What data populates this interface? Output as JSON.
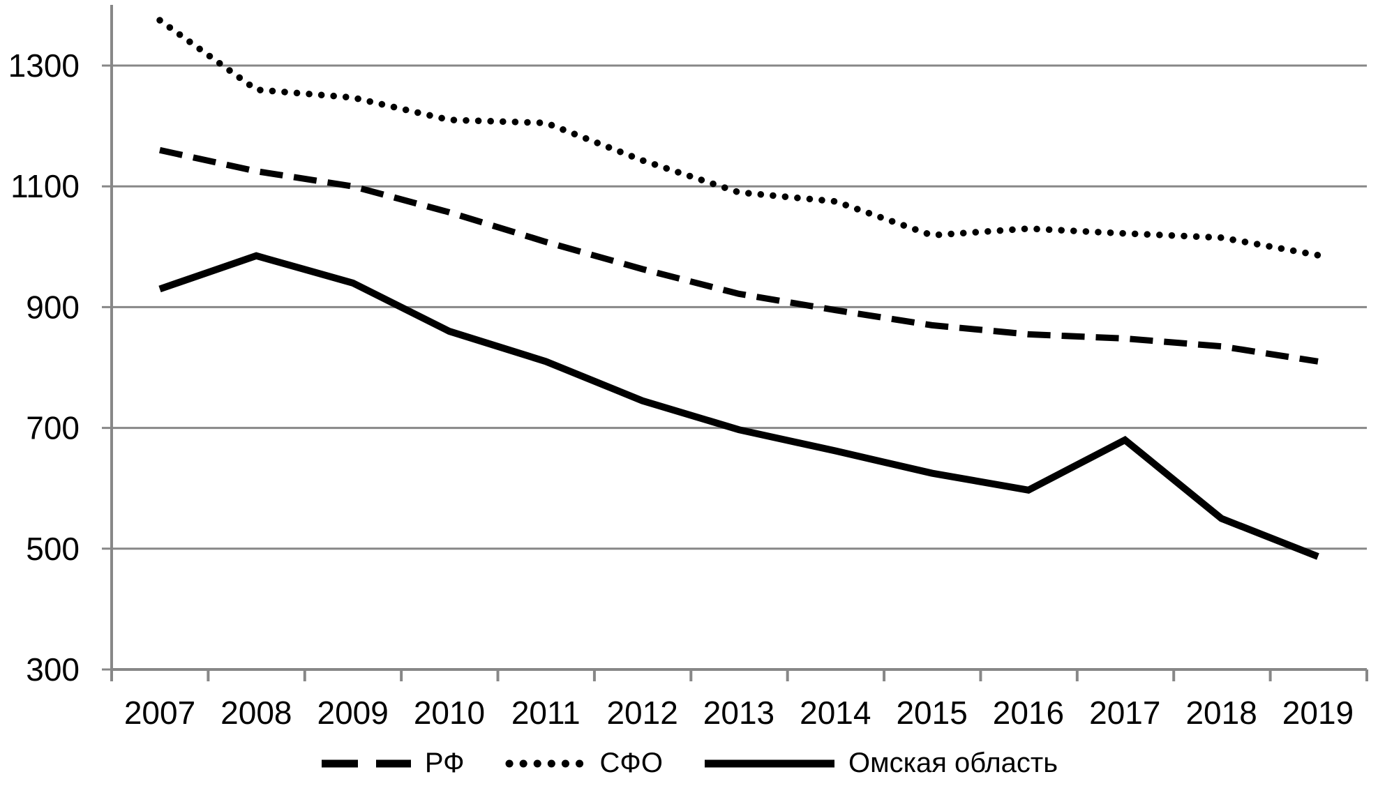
{
  "chart_data": {
    "type": "line",
    "title": "",
    "xlabel": "",
    "ylabel": "",
    "x": [
      "2007",
      "2008",
      "2009",
      "2010",
      "2011",
      "2012",
      "2013",
      "2014",
      "2015",
      "2016",
      "2017",
      "2018",
      "2019"
    ],
    "series": [
      {
        "id": "rf",
        "name": "РФ",
        "style": "dashed",
        "color": "#000000",
        "values": [
          1160,
          1125,
          1100,
          1057,
          1008,
          963,
          922,
          895,
          870,
          855,
          848,
          835,
          810
        ]
      },
      {
        "id": "sfo",
        "name": "СФО",
        "style": "dotted",
        "color": "#000000",
        "values": [
          1375,
          1260,
          1247,
          1210,
          1205,
          1143,
          1090,
          1075,
          1019,
          1030,
          1022,
          1015,
          986
        ]
      },
      {
        "id": "omsk",
        "name": "Омская область",
        "style": "solid",
        "color": "#000000",
        "values": [
          930,
          985,
          940,
          860,
          810,
          745,
          697,
          662,
          625,
          597,
          680,
          550,
          487
        ]
      }
    ],
    "yticks": [
      300,
      500,
      700,
      900,
      1100,
      1300
    ],
    "ylim": [
      300,
      1400
    ],
    "grid": true,
    "grid_color": "#878787",
    "text_color": "#000000",
    "legend_position": "bottom-center"
  }
}
